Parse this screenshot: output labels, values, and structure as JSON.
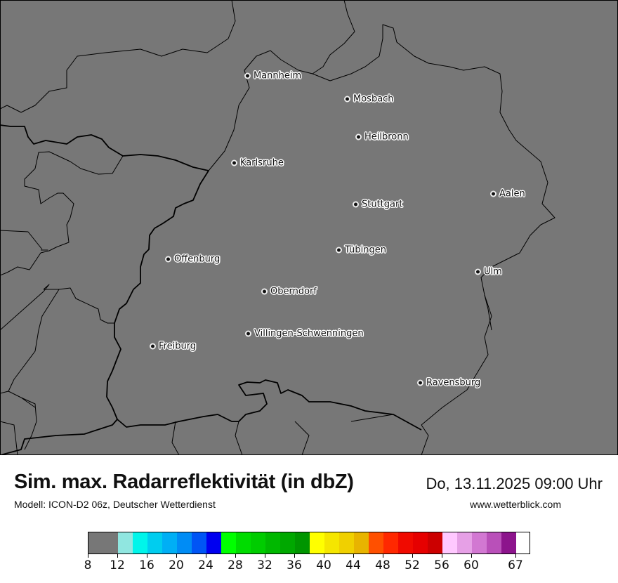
{
  "map": {
    "background_color": "#777777",
    "cities": [
      {
        "name": "Mannheim"
      },
      {
        "name": "Mosbach"
      },
      {
        "name": "Heilbronn"
      },
      {
        "name": "Karlsruhe"
      },
      {
        "name": "Aalen"
      },
      {
        "name": "Stuttgart"
      },
      {
        "name": "Tübingen"
      },
      {
        "name": "Offenburg"
      },
      {
        "name": "Ulm"
      },
      {
        "name": "Oberndorf"
      },
      {
        "name": "Villingen-Schwenningen"
      },
      {
        "name": "Freiburg"
      },
      {
        "name": "Ravensburg"
      }
    ]
  },
  "header": {
    "title": "Sim. max. Radarreflektivität (in dbZ)",
    "datetime": "Do, 13.11.2025 09:00 Uhr",
    "model": "Modell: ICON-D2 06z, Deutscher Wetterdienst",
    "website": "www.wetterblick.com"
  },
  "legend": {
    "unit": "dbZ",
    "colors": [
      "#777777",
      "#777777",
      "#90e6e0",
      "#00f5ea",
      "#00cdef",
      "#00aff5",
      "#008cf5",
      "#0055f5",
      "#0000f0",
      "#00ff00",
      "#00dc00",
      "#00cc00",
      "#00b800",
      "#00a800",
      "#009500",
      "#ffff00",
      "#f5e600",
      "#f0d000",
      "#e8b400",
      "#ff5000",
      "#ff2800",
      "#f00a00",
      "#e60000",
      "#cc0000",
      "#ffc8ff",
      "#e6a0e6",
      "#d278d2",
      "#b950b9",
      "#8c148c"
    ],
    "ticks": [
      "8",
      "12",
      "16",
      "20",
      "24",
      "28",
      "32",
      "36",
      "40",
      "44",
      "48",
      "52",
      "56",
      "60",
      "67"
    ]
  }
}
